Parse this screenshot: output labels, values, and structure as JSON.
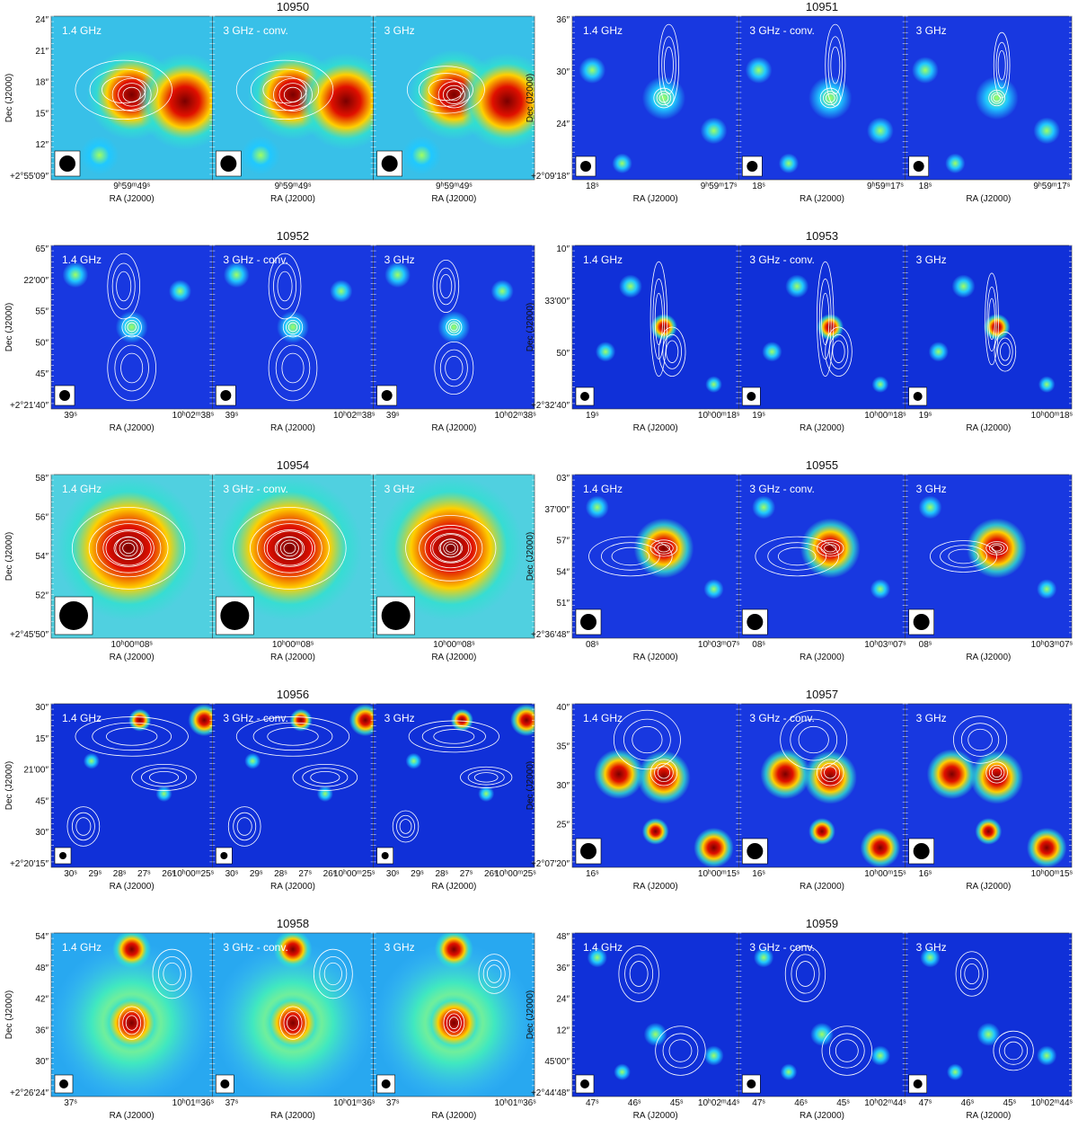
{
  "panel_labels": [
    "1.4 GHz",
    "3 GHz - conv.",
    "3 GHz"
  ],
  "y_label": "Dec (J2000)",
  "x_label": "RA (J2000)",
  "figures": [
    {
      "title": "10950",
      "yticks": [
        "24″",
        "21″",
        "18″",
        "15″",
        "12″",
        "+2°55′09″"
      ],
      "xticks": [
        "9ʰ59ᵐ49ˢ"
      ]
    },
    {
      "title": "10951",
      "yticks": [
        "36″",
        "30″",
        "24″",
        "+2°09′18″"
      ],
      "xticks": [
        "18ˢ",
        "9ʰ59ᵐ17ˢ"
      ]
    },
    {
      "title": "10952",
      "yticks": [
        "65″",
        "22′00″",
        "55″",
        "50″",
        "45″",
        "+2°21′40″"
      ],
      "xticks": [
        "39ˢ",
        "10ʰ02ᵐ38ˢ"
      ]
    },
    {
      "title": "10953",
      "yticks": [
        "10″",
        "33′00″",
        "50″",
        "+2°32′40″"
      ],
      "xticks": [
        "19ˢ",
        "10ʰ00ᵐ18ˢ"
      ]
    },
    {
      "title": "10954",
      "yticks": [
        "58″",
        "56″",
        "54″",
        "52″",
        "+2°45′50″"
      ],
      "xticks": [
        "10ʰ00ᵐ08ˢ"
      ]
    },
    {
      "title": "10955",
      "yticks": [
        "03″",
        "37′00″",
        "57″",
        "54″",
        "51″",
        "+2°36′48″"
      ],
      "xticks": [
        "08ˢ",
        "10ʰ03ᵐ07ˢ"
      ]
    },
    {
      "title": "10956",
      "yticks": [
        "30″",
        "15″",
        "21′00″",
        "45″",
        "30″",
        "+2°20′15″"
      ],
      "xticks": [
        "30ˢ",
        "29ˢ",
        "28ˢ",
        "27ˢ",
        "26ˢ",
        "10ʰ00ᵐ25ˢ"
      ]
    },
    {
      "title": "10957",
      "yticks": [
        "40″",
        "35″",
        "30″",
        "25″",
        "+2°07′20″"
      ],
      "xticks": [
        "16ˢ",
        "10ʰ00ᵐ15ˢ"
      ]
    },
    {
      "title": "10958",
      "yticks": [
        "54″",
        "48″",
        "42″",
        "36″",
        "30″",
        "+2°26′24″"
      ],
      "xticks": [
        "37ˢ",
        "10ʰ01ᵐ36ˢ"
      ]
    },
    {
      "title": "10959",
      "yticks": [
        "48″",
        "36″",
        "24″",
        "12″",
        "45′00″",
        "+2°44′48″"
      ],
      "xticks": [
        "47ˢ",
        "46ˢ",
        "45ˢ",
        "10ʰ02ᵐ44ˢ"
      ]
    }
  ]
}
